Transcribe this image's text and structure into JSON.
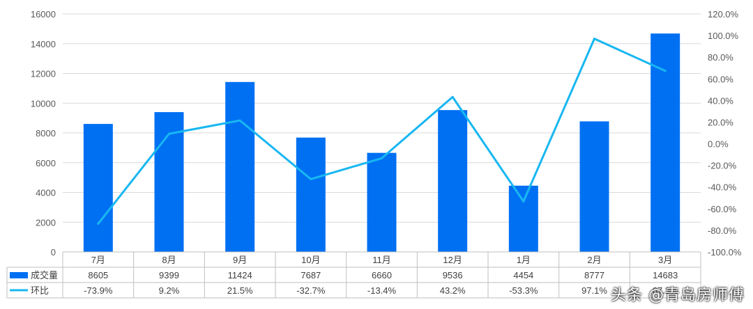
{
  "chart_data": {
    "type": "bar",
    "categories": [
      "7月",
      "8月",
      "9月",
      "10月",
      "11月",
      "12月",
      "1月",
      "2月",
      "3月"
    ],
    "series": [
      {
        "name": "成交量",
        "kind": "bar",
        "axis": "left",
        "color": "#0070F3",
        "values": [
          8605,
          9399,
          11424,
          7687,
          6660,
          9536,
          4454,
          8777,
          14683
        ]
      },
      {
        "name": "环比",
        "kind": "line",
        "axis": "right",
        "color": "#18B7F2",
        "values": [
          -73.9,
          9.2,
          21.5,
          -32.7,
          -13.4,
          43.2,
          -53.3,
          97.1,
          67.3
        ],
        "labels": [
          "-73.9%",
          "9.2%",
          "21.5%",
          "-32.7%",
          "-13.4%",
          "43.2%",
          "-53.3%",
          "97.1%",
          "67.3%"
        ]
      }
    ],
    "y_left": {
      "min": 0,
      "max": 16000,
      "ticks": [
        "0",
        "2000",
        "4000",
        "6000",
        "8000",
        "10000",
        "12000",
        "14000",
        "16000"
      ]
    },
    "y_right": {
      "min": -100,
      "max": 120,
      "ticks": [
        "-100.0%",
        "-80.0%",
        "-60.0%",
        "-40.0%",
        "-20.0%",
        "0.0%",
        "20.0%",
        "40.0%",
        "60.0%",
        "80.0%",
        "100.0%",
        "120.0%"
      ]
    },
    "grid": true,
    "legend": "data-table"
  },
  "watermark": "头条 @青岛房师傅"
}
